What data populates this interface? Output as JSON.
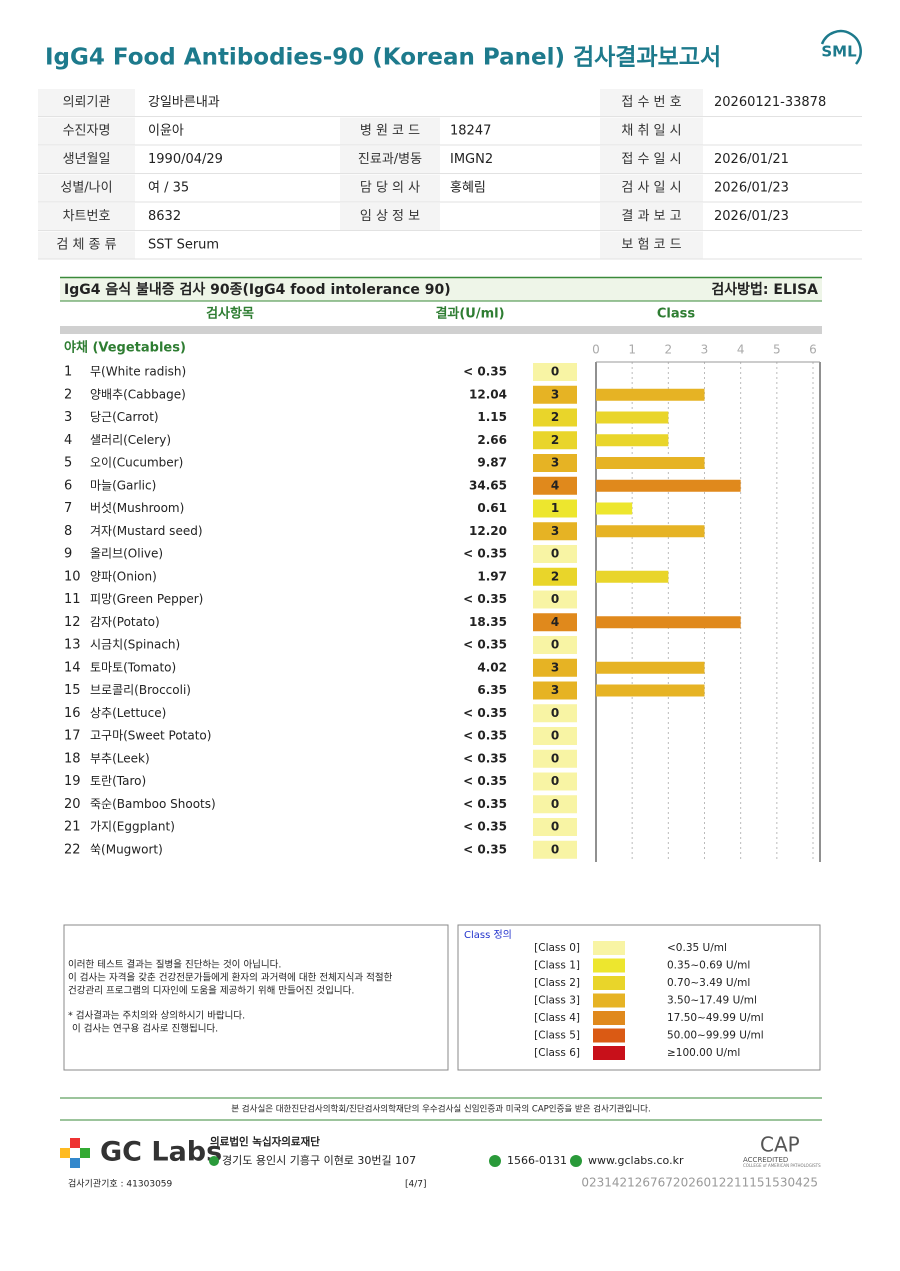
{
  "header": {
    "title": "IgG4 Food Antibodies-90 (Korean Panel) 검사결과보고서",
    "logo": "SML"
  },
  "info": [
    {
      "left": {
        "label": "의뢰기관",
        "value": "강일바른내과"
      },
      "right": {
        "label": "접 수 번 호",
        "value": "20260121-33878"
      }
    },
    {
      "left": {
        "label": "수진자명",
        "value": "이윤아"
      },
      "middle": {
        "label": "병 원 코 드",
        "value": "18247"
      },
      "right": {
        "label": "채 취 일 시"
      }
    },
    {
      "left": {
        "label": "생년월일",
        "value": "1990/04/29"
      },
      "middle": {
        "label": "진료과/병동",
        "value": "IMGN2"
      },
      "right": {
        "label": "접 수 일 시",
        "value": "2026/01/21"
      }
    },
    {
      "left": {
        "label": "성별/나이",
        "value": "여 / 35"
      },
      "middle": {
        "label": "담 당 의 사",
        "value": "홍혜림"
      },
      "right": {
        "label": "검 사 일 시",
        "value": "2026/01/23"
      }
    },
    {
      "left": {
        "label": "차트번호",
        "value": "8632"
      },
      "middle": {
        "label": "임 상 정 보"
      },
      "right": {
        "label": "결 과 보 고",
        "value": "2026/01/23"
      }
    },
    {
      "left": {
        "label": "검 체 종 류",
        "value": "SST Serum"
      },
      "right": {
        "label": "보 험 코 드"
      }
    }
  ],
  "chart_data": {
    "type": "bar",
    "title": "IgG4 음식 불내증 검사 90종(IgG4 food intolerance 90)",
    "method": "검사방법: ELISA",
    "headers": [
      "검사항목",
      "결과(U/ml)",
      "Class"
    ],
    "group": "야채 (Vegetables)",
    "numbers": [
      1,
      2,
      3,
      4,
      5,
      6,
      7,
      8,
      9,
      10,
      11,
      12,
      13,
      14,
      15,
      16,
      17,
      18,
      19,
      20,
      21,
      22
    ],
    "categories": [
      "무(White radish)",
      "양배추(Cabbage)",
      "당근(Carrot)",
      "샐러리(Celery)",
      "오이(Cucumber)",
      "마늘(Garlic)",
      "버섯(Mushroom)",
      "겨자(Mustard seed)",
      "올리브(Olive)",
      "양파(Onion)",
      "피망(Green Pepper)",
      "감자(Potato)",
      "시금치(Spinach)",
      "토마토(Tomato)",
      "브로콜리(Broccoli)",
      "상추(Lettuce)",
      "고구마(Sweet Potato)",
      "부추(Leek)",
      "토란(Taro)",
      "죽순(Bamboo Shoots)",
      "가지(Eggplant)",
      "쑥(Mugwort)"
    ],
    "results": [
      "< 0.35",
      "12.04",
      "1.15",
      "2.66",
      "9.87",
      "34.65",
      "0.61",
      "12.20",
      "< 0.35",
      "1.97",
      "< 0.35",
      "18.35",
      "< 0.35",
      "4.02",
      "6.35",
      "< 0.35",
      "< 0.35",
      "< 0.35",
      "< 0.35",
      "< 0.35",
      "< 0.35",
      "< 0.35"
    ],
    "values": [
      0,
      3,
      2,
      2,
      3,
      4,
      1,
      3,
      0,
      2,
      0,
      4,
      0,
      3,
      3,
      0,
      0,
      0,
      0,
      0,
      0,
      0
    ],
    "xlim": [
      0,
      6
    ],
    "xticks": [
      0,
      1,
      2,
      3,
      4,
      5,
      6
    ],
    "grid": true,
    "legend": {
      "title": "Class 정의",
      "items": [
        {
          "label": "[Class 0]",
          "color": "#f8f4a4",
          "range": "<0.35 U/ml"
        },
        {
          "label": "[Class 1]",
          "color": "#ede62e",
          "range": "0.35~0.69 U/ml"
        },
        {
          "label": "[Class 2]",
          "color": "#e9d52a",
          "range": "0.70~3.49 U/ml"
        },
        {
          "label": "[Class 3]",
          "color": "#e6b324",
          "range": "3.50~17.49 U/ml"
        },
        {
          "label": "[Class 4]",
          "color": "#e0891c",
          "range": "17.50~49.99 U/ml"
        },
        {
          "label": "[Class 5]",
          "color": "#da5a14",
          "range": "50.00~99.99 U/ml"
        },
        {
          "label": "[Class 6]",
          "color": "#c8101a",
          "range": "≥100.00 U/ml"
        }
      ]
    }
  },
  "notes": [
    "이러한 테스트 결과는 질병을 진단하는 것이 아닙니다.",
    "이 검사는 자격을 갖춘 건강전문가들에게 환자의 과거력에 대한 전체지식과 적절한",
    "건강관리 프로그램의 디자인에 도움을 제공하기 위해 만들어진 것입니다.",
    "* 검사결과는 주치의와 상의하시기 바랍니다.",
    "이 검사는 연구용 검사로 진행됩니다."
  ],
  "footer": {
    "certification": "본 검사실은 대한진단검사의학회/진단검사의학재단의 우수검사실 신임인증과 미국의 CAP인증을 받은 검사기관입니다.",
    "brand": "GC Labs",
    "foundation": "의료법인 녹십자의료재단",
    "address": "경기도 용인시 기흥구 이현로 30번길 107",
    "phone": "1566-0131",
    "website": "www.gclabs.co.kr",
    "cap": "CAP",
    "accredited": "ACCREDITED",
    "college": "COLLEGE of AMERICAN PATHOLOGISTS",
    "institution_code": "검사기관기호 : 41303059",
    "page": "[4/7]",
    "barcode": "0231421267672026012211151530425"
  }
}
